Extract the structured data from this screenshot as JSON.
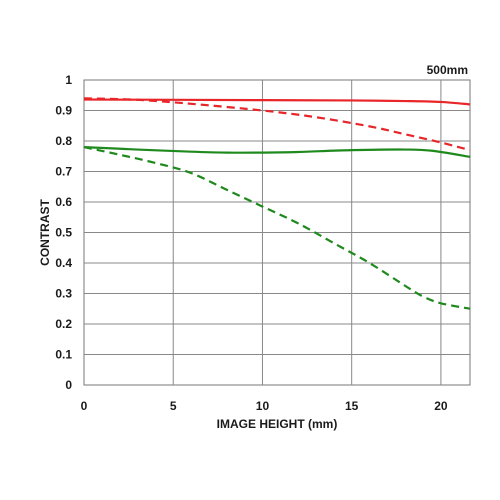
{
  "chart_data": {
    "type": "line",
    "title": "",
    "annotation": "500mm",
    "xlabel": "IMAGE HEIGHT (mm)",
    "ylabel": "CONTRAST",
    "xlim": [
      0,
      21.63
    ],
    "ylim": [
      0,
      1
    ],
    "x_ticks": [
      0,
      5,
      10,
      15,
      20
    ],
    "x_tick_labels": [
      "0",
      "5",
      "10",
      "15",
      "20"
    ],
    "y_ticks": [
      0,
      0.1,
      0.2,
      0.3,
      0.4,
      0.5,
      0.6,
      0.7,
      0.8,
      0.9,
      1
    ],
    "y_tick_labels": [
      "0",
      "0.1",
      "0.2",
      "0.3",
      "0.4",
      "0.5",
      "0.6",
      "0.7",
      "0.8",
      "0.9",
      "1"
    ],
    "grid": true,
    "legend": "none",
    "series": [
      {
        "color": "#e8262a",
        "style": "solid",
        "points": [
          [
            0,
            0.936
          ],
          [
            5,
            0.935
          ],
          [
            10,
            0.934
          ],
          [
            15,
            0.933
          ],
          [
            18,
            0.931
          ],
          [
            20,
            0.928
          ],
          [
            21.63,
            0.92
          ]
        ]
      },
      {
        "color": "#e8262a",
        "style": "dashed",
        "points": [
          [
            0,
            0.94
          ],
          [
            3,
            0.935
          ],
          [
            6,
            0.922
          ],
          [
            10,
            0.9
          ],
          [
            13,
            0.878
          ],
          [
            16,
            0.848
          ],
          [
            18,
            0.822
          ],
          [
            20,
            0.795
          ],
          [
            21.63,
            0.77
          ]
        ]
      },
      {
        "color": "#1e8a1e",
        "style": "solid",
        "points": [
          [
            0,
            0.78
          ],
          [
            3,
            0.772
          ],
          [
            6,
            0.765
          ],
          [
            8,
            0.762
          ],
          [
            10,
            0.762
          ],
          [
            12,
            0.764
          ],
          [
            15,
            0.77
          ],
          [
            18,
            0.772
          ],
          [
            19.5,
            0.768
          ],
          [
            21.63,
            0.748
          ]
        ]
      },
      {
        "color": "#1e8a1e",
        "style": "dashed",
        "points": [
          [
            0,
            0.78
          ],
          [
            2,
            0.755
          ],
          [
            4,
            0.728
          ],
          [
            6,
            0.695
          ],
          [
            8,
            0.64
          ],
          [
            10,
            0.585
          ],
          [
            12,
            0.53
          ],
          [
            14,
            0.465
          ],
          [
            16,
            0.4
          ],
          [
            18,
            0.325
          ],
          [
            19,
            0.29
          ],
          [
            20,
            0.268
          ],
          [
            21.63,
            0.25
          ]
        ]
      }
    ]
  }
}
